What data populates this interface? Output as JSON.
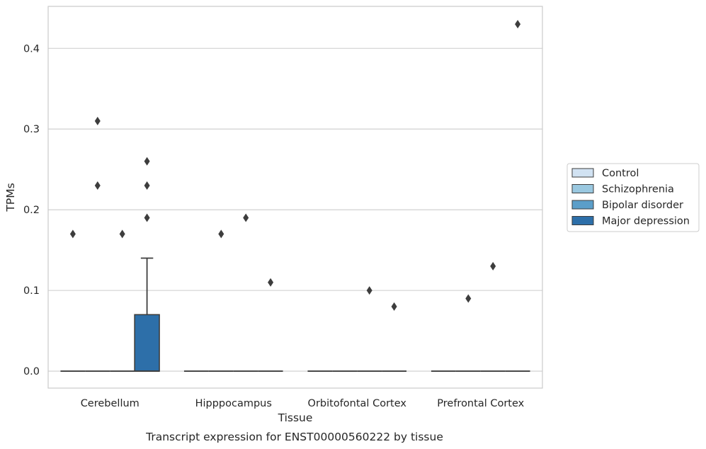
{
  "chart_data": {
    "type": "box",
    "caption": "Transcript expression for ENST00000560222 by tissue",
    "xlabel": "Tissue",
    "ylabel": "TPMs",
    "ylim": [
      -0.021,
      0.452
    ],
    "yticks": [
      0.0,
      0.1,
      0.2,
      0.3,
      0.4
    ],
    "ytick_labels": [
      "0.0",
      "0.1",
      "0.2",
      "0.3",
      "0.4"
    ],
    "grid": "horizontal",
    "legend_position": "right",
    "categories": [
      "Cerebellum",
      "Hipppocampus",
      "Orbitofontal Cortex",
      "Prefrontal Cortex"
    ],
    "series": [
      {
        "name": "Control",
        "color": "#d1e2f2",
        "boxes": [
          {
            "q1": 0,
            "median": 0,
            "q3": 0,
            "whisker_low": 0,
            "whisker_high": 0,
            "outliers": [
              0.17
            ]
          },
          {
            "q1": 0,
            "median": 0,
            "q3": 0,
            "whisker_low": 0,
            "whisker_high": 0,
            "outliers": []
          },
          {
            "q1": 0,
            "median": 0,
            "q3": 0,
            "whisker_low": 0,
            "whisker_high": 0,
            "outliers": []
          },
          {
            "q1": 0,
            "median": 0,
            "q3": 0,
            "whisker_low": 0,
            "whisker_high": 0,
            "outliers": []
          }
        ]
      },
      {
        "name": "Schizophrenia",
        "color": "#9ac8e0",
        "boxes": [
          {
            "q1": 0,
            "median": 0,
            "q3": 0,
            "whisker_low": 0,
            "whisker_high": 0,
            "outliers": [
              0.31,
              0.23
            ]
          },
          {
            "q1": 0,
            "median": 0,
            "q3": 0,
            "whisker_low": 0,
            "whisker_high": 0,
            "outliers": [
              0.17
            ]
          },
          {
            "q1": 0,
            "median": 0,
            "q3": 0,
            "whisker_low": 0,
            "whisker_high": 0,
            "outliers": []
          },
          {
            "q1": 0,
            "median": 0,
            "q3": 0,
            "whisker_low": 0,
            "whisker_high": 0,
            "outliers": [
              0.09
            ]
          }
        ]
      },
      {
        "name": "Bipolar disorder",
        "color": "#5b9ec9",
        "boxes": [
          {
            "q1": 0,
            "median": 0,
            "q3": 0,
            "whisker_low": 0,
            "whisker_high": 0,
            "outliers": [
              0.17
            ]
          },
          {
            "q1": 0,
            "median": 0,
            "q3": 0,
            "whisker_low": 0,
            "whisker_high": 0,
            "outliers": [
              0.19
            ]
          },
          {
            "q1": 0,
            "median": 0,
            "q3": 0,
            "whisker_low": 0,
            "whisker_high": 0,
            "outliers": [
              0.1
            ]
          },
          {
            "q1": 0,
            "median": 0,
            "q3": 0,
            "whisker_low": 0,
            "whisker_high": 0,
            "outliers": [
              0.13
            ]
          }
        ]
      },
      {
        "name": "Major depression",
        "color": "#2d6fa9",
        "boxes": [
          {
            "q1": 0,
            "median": 0,
            "q3": 0.07,
            "whisker_low": 0,
            "whisker_high": 0.14,
            "outliers": [
              0.26,
              0.23,
              0.19
            ]
          },
          {
            "q1": 0,
            "median": 0,
            "q3": 0,
            "whisker_low": 0,
            "whisker_high": 0,
            "outliers": [
              0.11
            ]
          },
          {
            "q1": 0,
            "median": 0,
            "q3": 0,
            "whisker_low": 0,
            "whisker_high": 0,
            "outliers": [
              0.08
            ]
          },
          {
            "q1": 0,
            "median": 0,
            "q3": 0,
            "whisker_low": 0,
            "whisker_high": 0,
            "outliers": [
              0.43
            ]
          }
        ]
      }
    ]
  }
}
